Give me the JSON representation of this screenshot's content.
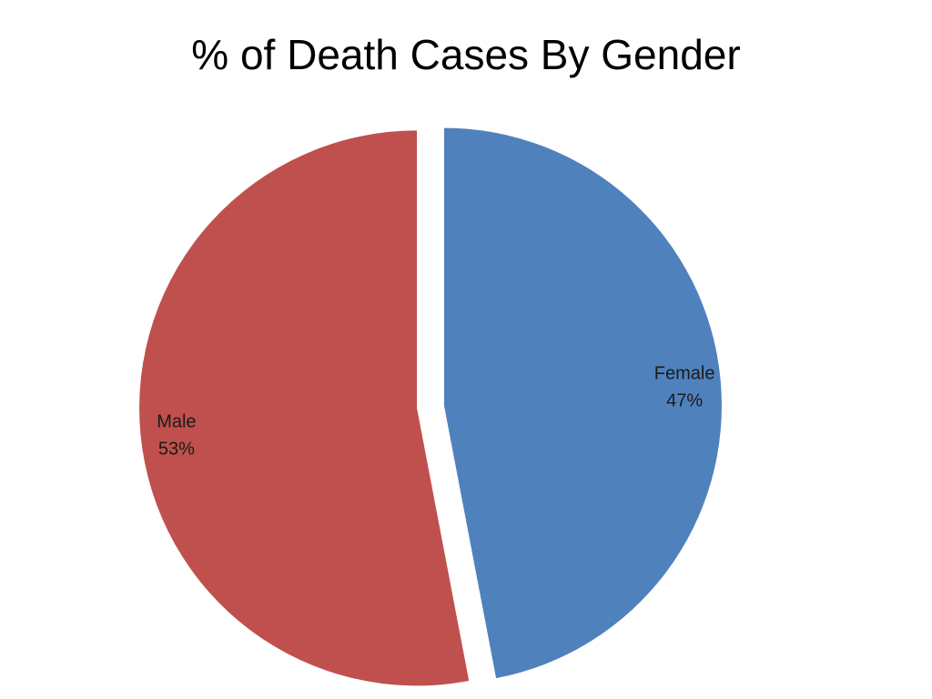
{
  "chart_data": {
    "type": "pie",
    "title": "% of Death Cases By Gender",
    "slices": [
      {
        "label": "Female",
        "value": 47,
        "value_label": "47%",
        "color": "#4F81BD",
        "exploded": true
      },
      {
        "label": "Male",
        "value": 53,
        "value_label": "53%",
        "color": "#C0504D",
        "exploded": true
      }
    ],
    "start_angle_deg": 0,
    "direction": "clockwise",
    "legend": "none",
    "data_labels": "category and percentage"
  }
}
